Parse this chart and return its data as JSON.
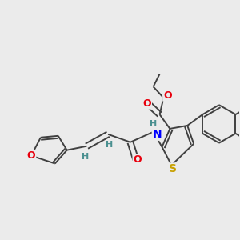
{
  "bg_color": "#ebebeb",
  "bond_color": "#404040",
  "bond_width": 1.4,
  "dbo": 0.06,
  "atoms": {
    "O": "#e8000d",
    "N": "#0000ff",
    "S": "#c8a000",
    "H": "#4a9090",
    "C": "#404040"
  },
  "figsize": [
    3.0,
    3.0
  ],
  "dpi": 100
}
